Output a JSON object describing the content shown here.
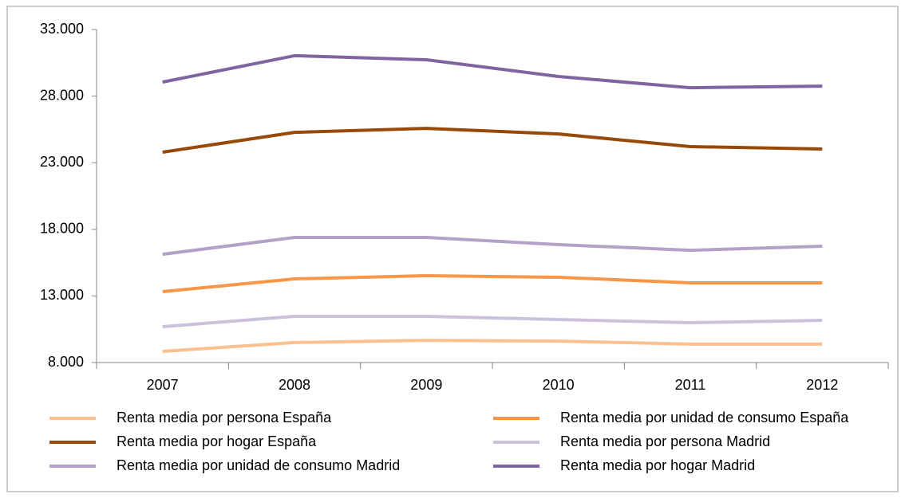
{
  "chart_data": {
    "type": "line",
    "categories": [
      "2007",
      "2008",
      "2009",
      "2010",
      "2011",
      "2012"
    ],
    "series": [
      {
        "name": "Renta media por persona España",
        "color": "#fac090",
        "values": [
          8840,
          9500,
          9670,
          9610,
          9380,
          9380
        ]
      },
      {
        "name": "Renta media por unidad de consumo España",
        "color": "#f79646",
        "values": [
          13320,
          14280,
          14520,
          14400,
          13980,
          13980
        ]
      },
      {
        "name": "Renta media por hogar España",
        "color": "#984807",
        "values": [
          23790,
          25280,
          25580,
          25160,
          24210,
          24030
        ]
      },
      {
        "name": "Renta media por persona Madrid",
        "color": "#ccc1da",
        "values": [
          10690,
          11470,
          11470,
          11230,
          10990,
          11170
        ]
      },
      {
        "name": "Renta media por unidad de consumo Madrid",
        "color": "#b3a2c7",
        "values": [
          16130,
          17390,
          17390,
          16850,
          16430,
          16730
        ]
      },
      {
        "name": "Renta media por hogar Madrid",
        "color": "#8064a2",
        "values": [
          29050,
          31030,
          30730,
          29470,
          28630,
          28750
        ]
      }
    ],
    "ylim": [
      8000,
      33000
    ],
    "yticks": [
      {
        "value": 8000,
        "label": "8.000"
      },
      {
        "value": 13000,
        "label": "13.000"
      },
      {
        "value": 18000,
        "label": "18.000"
      },
      {
        "value": 23000,
        "label": "23.000"
      },
      {
        "value": 28000,
        "label": "28.000"
      },
      {
        "value": 33000,
        "label": "33.000"
      }
    ],
    "grid": false,
    "legend": "bottom"
  }
}
